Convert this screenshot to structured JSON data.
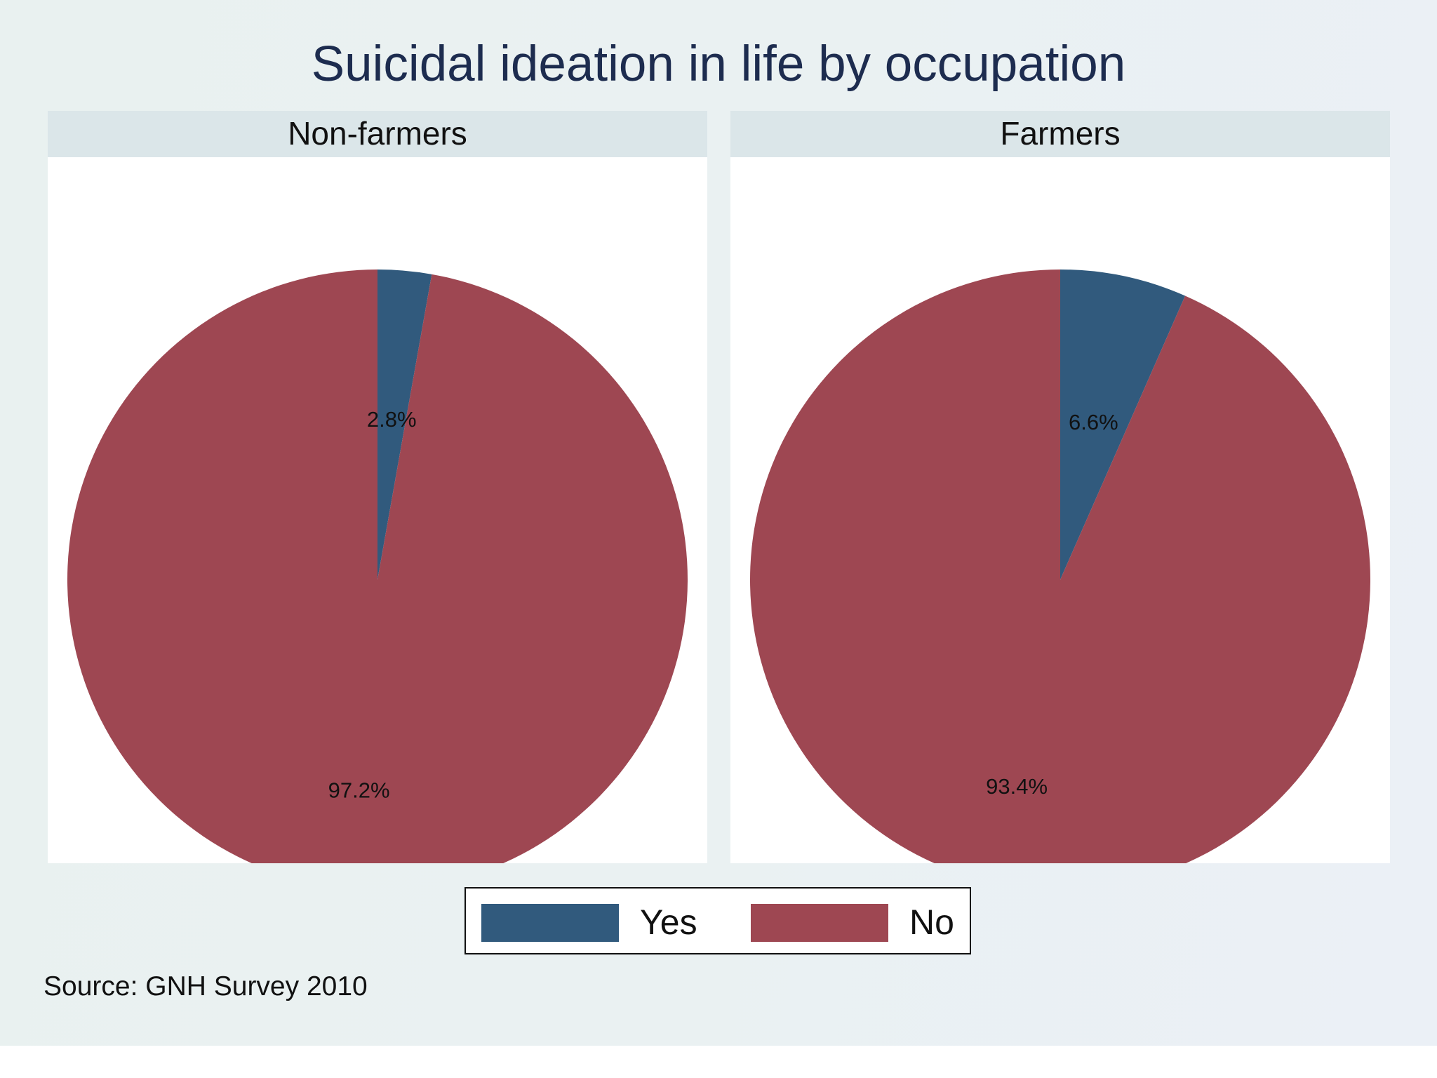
{
  "chart_data": [
    {
      "type": "pie",
      "title": "Suicidal ideation in life by occupation",
      "panel": "Non-farmers",
      "categories": [
        "Yes",
        "No"
      ],
      "values": [
        2.8,
        97.2
      ],
      "labels": [
        "2.8%",
        "97.2%"
      ],
      "colors": [
        "#315a7d",
        "#9e4752"
      ]
    },
    {
      "type": "pie",
      "title": "Suicidal ideation in life by occupation",
      "panel": "Farmers",
      "categories": [
        "Yes",
        "No"
      ],
      "values": [
        6.6,
        93.4
      ],
      "labels": [
        "6.6%",
        "93.4%"
      ],
      "colors": [
        "#315a7d",
        "#9e4752"
      ]
    }
  ],
  "title": "Suicidal ideation in life by occupation",
  "panels": [
    {
      "label": "Non-farmers"
    },
    {
      "label": "Farmers"
    }
  ],
  "legend": {
    "position": "bottom",
    "items": [
      {
        "label": "Yes",
        "color": "#315a7d"
      },
      {
        "label": "No",
        "color": "#9e4752"
      }
    ]
  },
  "source": "Source: GNH Survey 2010"
}
